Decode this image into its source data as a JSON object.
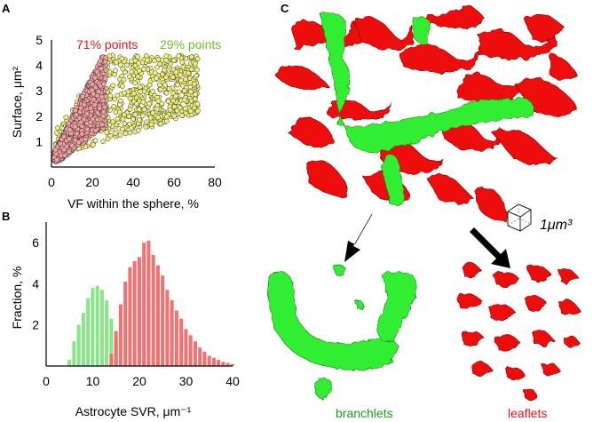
{
  "panels": {
    "a": {
      "label": "A"
    },
    "b": {
      "label": "B"
    },
    "c": {
      "label": "C"
    }
  },
  "chart_data": [
    {
      "type": "scatter",
      "ylabel": "Surface, μm²",
      "xlabel": "VF within the sphere, %",
      "xlim": [
        0,
        80
      ],
      "ylim": [
        0,
        5
      ],
      "x_ticks": [
        "0",
        "20",
        "40",
        "60",
        "80"
      ],
      "y_ticks": [
        "1",
        "2",
        "3",
        "4",
        "5"
      ],
      "annotations": [
        {
          "text": "71% points",
          "color": "#e8141c"
        },
        {
          "text": "29% points",
          "color": "#6fbf2a"
        }
      ],
      "series": [
        {
          "color": "#f4a0a0",
          "fraction": 71,
          "x_range": [
            0,
            27
          ],
          "y_range": [
            0.2,
            4.4
          ]
        },
        {
          "color": "#eef07a",
          "fraction": 29,
          "x_range": [
            2,
            72
          ],
          "y_range": [
            0.2,
            4.4
          ]
        }
      ]
    },
    {
      "type": "bar",
      "ylabel": "Fraction, %",
      "xlabel": "Astrocyte SVR, μm⁻¹",
      "xlim": [
        0,
        40
      ],
      "ylim": [
        0,
        7
      ],
      "x_ticks": [
        "0",
        "10",
        "20",
        "30",
        "40"
      ],
      "y_ticks": [
        "2",
        "4",
        "6"
      ],
      "bin_width": 1,
      "series": [
        {
          "color": "#7ee07e",
          "x": [
            5,
            6,
            7,
            8,
            9,
            10,
            11,
            12,
            13,
            14,
            15
          ],
          "values": [
            0.3,
            1.2,
            2.0,
            2.6,
            3.3,
            3.8,
            3.9,
            3.7,
            3.2,
            2.3,
            1.4
          ]
        },
        {
          "color": "#f06a6a",
          "x": [
            14,
            15,
            16,
            17,
            18,
            19,
            20,
            21,
            22,
            23,
            24,
            25,
            26,
            27,
            28,
            29,
            30,
            31,
            32,
            33,
            34,
            35,
            36,
            37,
            38,
            39,
            40
          ],
          "values": [
            0.6,
            1.7,
            3.0,
            4.1,
            4.8,
            5.1,
            5.3,
            6.0,
            6.1,
            5.4,
            4.9,
            4.4,
            3.7,
            3.2,
            2.7,
            2.3,
            1.8,
            1.5,
            1.2,
            0.9,
            0.7,
            0.5,
            0.4,
            0.3,
            0.2,
            0.15,
            0.1
          ]
        }
      ]
    }
  ],
  "panel_c": {
    "scale_label": "1μm³",
    "bottom_left_label": "branchlets",
    "bottom_right_label": "leaflets",
    "colors": {
      "green": "#33ee33",
      "red": "#ee1111",
      "green_text": "#1c9a1c",
      "red_text": "#e8141c"
    }
  }
}
